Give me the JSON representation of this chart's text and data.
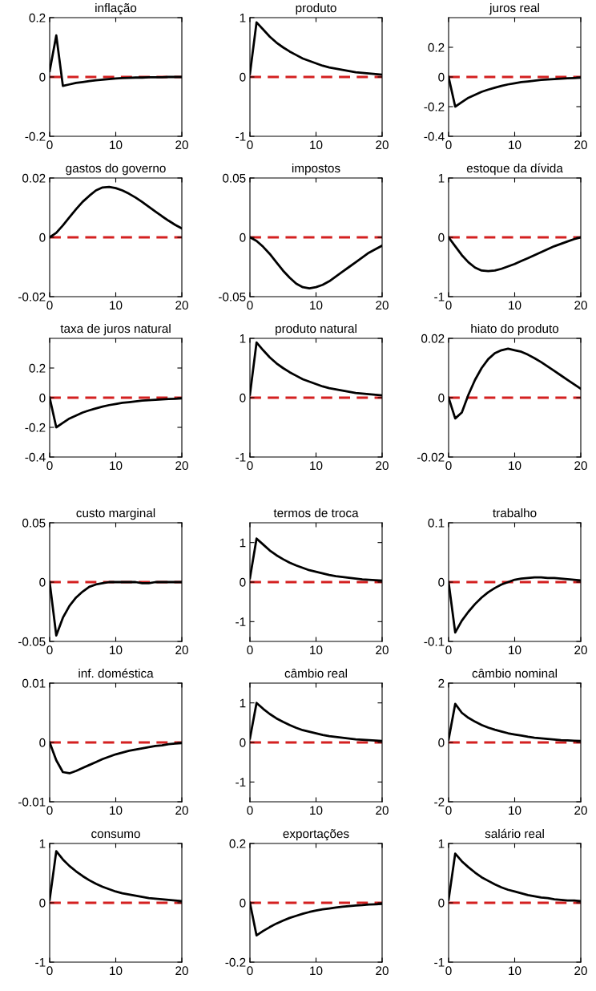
{
  "chart_data": [
    {
      "type": "line",
      "title": "inflação",
      "x": [
        0,
        1,
        2,
        3,
        4,
        5,
        6,
        7,
        8,
        9,
        10,
        11,
        12,
        13,
        14,
        15,
        16,
        17,
        18,
        19,
        20
      ],
      "xlim": [
        0,
        20
      ],
      "xticks": [
        0,
        10,
        20
      ],
      "ylim": [
        -0.2,
        0.2
      ],
      "yticks": [
        -0.2,
        0,
        0.2
      ],
      "ref_lines": [
        {
          "axis": "y",
          "value": 0,
          "color": "#d42020",
          "line_style": "dashed"
        }
      ],
      "series": [
        {
          "color": "#000000",
          "values": [
            0.02,
            0.14,
            -0.03,
            -0.025,
            -0.02,
            -0.017,
            -0.014,
            -0.011,
            -0.009,
            -0.007,
            -0.005,
            -0.004,
            -0.003,
            -0.002,
            -0.002,
            -0.001,
            -0.001,
            -0.001,
            0,
            0,
            0
          ]
        }
      ]
    },
    {
      "type": "line",
      "title": "produto",
      "x": [
        0,
        1,
        2,
        3,
        4,
        5,
        6,
        7,
        8,
        9,
        10,
        11,
        12,
        13,
        14,
        15,
        16,
        17,
        18,
        19,
        20
      ],
      "xlim": [
        0,
        20
      ],
      "xticks": [
        0,
        10,
        20
      ],
      "ylim": [
        -1,
        1
      ],
      "yticks": [
        -1,
        0,
        1
      ],
      "ref_lines": [
        {
          "axis": "y",
          "value": 0,
          "color": "#d42020",
          "line_style": "dashed"
        }
      ],
      "series": [
        {
          "color": "#000000",
          "values": [
            0.05,
            0.92,
            0.8,
            0.68,
            0.58,
            0.5,
            0.43,
            0.37,
            0.31,
            0.27,
            0.23,
            0.19,
            0.16,
            0.14,
            0.12,
            0.1,
            0.08,
            0.07,
            0.06,
            0.05,
            0.04
          ]
        }
      ]
    },
    {
      "type": "line",
      "title": "juros real",
      "x": [
        0,
        1,
        2,
        3,
        4,
        5,
        6,
        7,
        8,
        9,
        10,
        11,
        12,
        13,
        14,
        15,
        16,
        17,
        18,
        19,
        20
      ],
      "xlim": [
        0,
        20
      ],
      "xticks": [
        0,
        10,
        20
      ],
      "ylim": [
        -0.4,
        0.4
      ],
      "yticks": [
        -0.4,
        -0.2,
        0,
        0.2
      ],
      "ref_lines": [
        {
          "axis": "y",
          "value": 0,
          "color": "#d42020",
          "line_style": "dashed"
        }
      ],
      "series": [
        {
          "color": "#000000",
          "values": [
            0,
            -0.2,
            -0.17,
            -0.14,
            -0.12,
            -0.1,
            -0.085,
            -0.072,
            -0.06,
            -0.05,
            -0.042,
            -0.035,
            -0.03,
            -0.025,
            -0.02,
            -0.017,
            -0.014,
            -0.011,
            -0.009,
            -0.007,
            -0.005
          ]
        }
      ]
    },
    {
      "type": "line",
      "title": "gastos do governo",
      "x": [
        0,
        1,
        2,
        3,
        4,
        5,
        6,
        7,
        8,
        9,
        10,
        11,
        12,
        13,
        14,
        15,
        16,
        17,
        18,
        19,
        20
      ],
      "xlim": [
        0,
        20
      ],
      "xticks": [
        0,
        10,
        20
      ],
      "ylim": [
        -0.02,
        0.02
      ],
      "yticks": [
        -0.02,
        0,
        0.02
      ],
      "ref_lines": [
        {
          "axis": "y",
          "value": 0,
          "color": "#d42020",
          "line_style": "dashed"
        }
      ],
      "series": [
        {
          "color": "#000000",
          "values": [
            0,
            0.0015,
            0.004,
            0.0068,
            0.0095,
            0.012,
            0.014,
            0.0158,
            0.0168,
            0.017,
            0.0166,
            0.0158,
            0.0147,
            0.0134,
            0.0119,
            0.0103,
            0.0087,
            0.0071,
            0.0056,
            0.0042,
            0.003
          ]
        }
      ]
    },
    {
      "type": "line",
      "title": "impostos",
      "x": [
        0,
        1,
        2,
        3,
        4,
        5,
        6,
        7,
        8,
        9,
        10,
        11,
        12,
        13,
        14,
        15,
        16,
        17,
        18,
        19,
        20
      ],
      "xlim": [
        0,
        20
      ],
      "xticks": [
        0,
        10,
        20
      ],
      "ylim": [
        -0.05,
        0.05
      ],
      "yticks": [
        -0.05,
        0,
        0.05
      ],
      "ref_lines": [
        {
          "axis": "y",
          "value": 0,
          "color": "#d42020",
          "line_style": "dashed"
        }
      ],
      "series": [
        {
          "color": "#000000",
          "values": [
            0,
            -0.003,
            -0.008,
            -0.014,
            -0.021,
            -0.028,
            -0.034,
            -0.039,
            -0.042,
            -0.043,
            -0.042,
            -0.04,
            -0.037,
            -0.033,
            -0.029,
            -0.025,
            -0.021,
            -0.017,
            -0.013,
            -0.01,
            -0.007
          ]
        }
      ]
    },
    {
      "type": "line",
      "title": "estoque da dívida",
      "x": [
        0,
        1,
        2,
        3,
        4,
        5,
        6,
        7,
        8,
        9,
        10,
        11,
        12,
        13,
        14,
        15,
        16,
        17,
        18,
        19,
        20
      ],
      "xlim": [
        0,
        20
      ],
      "xticks": [
        0,
        10,
        20
      ],
      "ylim": [
        -1,
        1
      ],
      "yticks": [
        -1,
        0,
        1
      ],
      "ref_lines": [
        {
          "axis": "y",
          "value": 0,
          "color": "#d42020",
          "line_style": "dashed"
        }
      ],
      "series": [
        {
          "color": "#000000",
          "values": [
            0,
            -0.15,
            -0.3,
            -0.42,
            -0.51,
            -0.56,
            -0.57,
            -0.56,
            -0.53,
            -0.49,
            -0.45,
            -0.4,
            -0.35,
            -0.3,
            -0.25,
            -0.2,
            -0.15,
            -0.11,
            -0.07,
            -0.03,
            0
          ]
        }
      ]
    },
    {
      "type": "line",
      "title": "taxa de juros natural",
      "x": [
        0,
        1,
        2,
        3,
        4,
        5,
        6,
        7,
        8,
        9,
        10,
        11,
        12,
        13,
        14,
        15,
        16,
        17,
        18,
        19,
        20
      ],
      "xlim": [
        0,
        20
      ],
      "xticks": [
        0,
        10,
        20
      ],
      "ylim": [
        -0.4,
        0.4
      ],
      "yticks": [
        -0.4,
        -0.2,
        0,
        0.2
      ],
      "ref_lines": [
        {
          "axis": "y",
          "value": 0,
          "color": "#d42020",
          "line_style": "dashed"
        }
      ],
      "series": [
        {
          "color": "#000000",
          "values": [
            0,
            -0.2,
            -0.17,
            -0.14,
            -0.12,
            -0.1,
            -0.085,
            -0.072,
            -0.06,
            -0.05,
            -0.042,
            -0.035,
            -0.03,
            -0.025,
            -0.02,
            -0.017,
            -0.014,
            -0.011,
            -0.009,
            -0.007,
            -0.005
          ]
        }
      ]
    },
    {
      "type": "line",
      "title": "produto natural",
      "x": [
        0,
        1,
        2,
        3,
        4,
        5,
        6,
        7,
        8,
        9,
        10,
        11,
        12,
        13,
        14,
        15,
        16,
        17,
        18,
        19,
        20
      ],
      "xlim": [
        0,
        20
      ],
      "xticks": [
        0,
        10,
        20
      ],
      "ylim": [
        -1,
        1
      ],
      "yticks": [
        -1,
        0,
        1
      ],
      "ref_lines": [
        {
          "axis": "y",
          "value": 0,
          "color": "#d42020",
          "line_style": "dashed"
        }
      ],
      "series": [
        {
          "color": "#000000",
          "values": [
            0.05,
            0.93,
            0.8,
            0.68,
            0.58,
            0.5,
            0.43,
            0.37,
            0.31,
            0.27,
            0.23,
            0.19,
            0.16,
            0.14,
            0.12,
            0.1,
            0.08,
            0.07,
            0.06,
            0.05,
            0.04
          ]
        }
      ]
    },
    {
      "type": "line",
      "title": "hiato do produto",
      "x": [
        0,
        1,
        2,
        3,
        4,
        5,
        6,
        7,
        8,
        9,
        10,
        11,
        12,
        13,
        14,
        15,
        16,
        17,
        18,
        19,
        20
      ],
      "xlim": [
        0,
        20
      ],
      "xticks": [
        0,
        10,
        20
      ],
      "ylim": [
        -0.02,
        0.02
      ],
      "yticks": [
        -0.02,
        0,
        0.02
      ],
      "ref_lines": [
        {
          "axis": "y",
          "value": 0,
          "color": "#d42020",
          "line_style": "dashed"
        }
      ],
      "series": [
        {
          "color": "#000000",
          "values": [
            0,
            -0.007,
            -0.005,
            0.001,
            0.006,
            0.01,
            0.013,
            0.015,
            0.016,
            0.0165,
            0.016,
            0.0155,
            0.0145,
            0.0133,
            0.012,
            0.0105,
            0.009,
            0.0075,
            0.006,
            0.0045,
            0.003
          ]
        }
      ]
    },
    {
      "type": "line",
      "title": "custo marginal",
      "x": [
        0,
        1,
        2,
        3,
        4,
        5,
        6,
        7,
        8,
        9,
        10,
        11,
        12,
        13,
        14,
        15,
        16,
        17,
        18,
        19,
        20
      ],
      "xlim": [
        0,
        20
      ],
      "xticks": [
        0,
        10,
        20
      ],
      "ylim": [
        -0.05,
        0.05
      ],
      "yticks": [
        -0.05,
        0,
        0.05
      ],
      "ref_lines": [
        {
          "axis": "y",
          "value": 0,
          "color": "#d42020",
          "line_style": "dashed"
        }
      ],
      "series": [
        {
          "color": "#000000",
          "values": [
            0,
            -0.045,
            -0.03,
            -0.02,
            -0.013,
            -0.008,
            -0.004,
            -0.002,
            -0.001,
            0,
            0,
            0,
            0,
            0,
            -0.001,
            -0.001,
            0,
            0,
            0,
            0,
            0
          ]
        }
      ]
    },
    {
      "type": "line",
      "title": "termos de troca",
      "x": [
        0,
        1,
        2,
        3,
        4,
        5,
        6,
        7,
        8,
        9,
        10,
        11,
        12,
        13,
        14,
        15,
        16,
        17,
        18,
        19,
        20
      ],
      "xlim": [
        0,
        20
      ],
      "xticks": [
        0,
        10,
        20
      ],
      "ylim": [
        -1.5,
        1.5
      ],
      "yticks": [
        -1,
        0,
        1
      ],
      "ref_lines": [
        {
          "axis": "y",
          "value": 0,
          "color": "#d42020",
          "line_style": "dashed"
        }
      ],
      "series": [
        {
          "color": "#000000",
          "values": [
            0.1,
            1.1,
            0.95,
            0.8,
            0.68,
            0.58,
            0.49,
            0.42,
            0.36,
            0.3,
            0.26,
            0.22,
            0.18,
            0.15,
            0.13,
            0.11,
            0.09,
            0.07,
            0.06,
            0.05,
            0.04
          ]
        }
      ]
    },
    {
      "type": "line",
      "title": "trabalho",
      "x": [
        0,
        1,
        2,
        3,
        4,
        5,
        6,
        7,
        8,
        9,
        10,
        11,
        12,
        13,
        14,
        15,
        16,
        17,
        18,
        19,
        20
      ],
      "xlim": [
        0,
        20
      ],
      "xticks": [
        0,
        10,
        20
      ],
      "ylim": [
        -0.1,
        0.1
      ],
      "yticks": [
        -0.1,
        0,
        0.1
      ],
      "ref_lines": [
        {
          "axis": "y",
          "value": 0,
          "color": "#d42020",
          "line_style": "dashed"
        }
      ],
      "series": [
        {
          "color": "#000000",
          "values": [
            0,
            -0.085,
            -0.065,
            -0.05,
            -0.037,
            -0.026,
            -0.017,
            -0.01,
            -0.004,
            0,
            0.004,
            0.006,
            0.007,
            0.008,
            0.008,
            0.007,
            0.007,
            0.006,
            0.005,
            0.004,
            0.003
          ]
        }
      ]
    },
    {
      "type": "line",
      "title": "inf. doméstica",
      "x": [
        0,
        1,
        2,
        3,
        4,
        5,
        6,
        7,
        8,
        9,
        10,
        11,
        12,
        13,
        14,
        15,
        16,
        17,
        18,
        19,
        20
      ],
      "xlim": [
        0,
        20
      ],
      "xticks": [
        0,
        10,
        20
      ],
      "ylim": [
        -0.01,
        0.01
      ],
      "yticks": [
        -0.01,
        0,
        0.01
      ],
      "ref_lines": [
        {
          "axis": "y",
          "value": 0,
          "color": "#d42020",
          "line_style": "dashed"
        }
      ],
      "series": [
        {
          "color": "#000000",
          "values": [
            0,
            -0.003,
            -0.005,
            -0.0052,
            -0.0048,
            -0.0043,
            -0.0038,
            -0.0033,
            -0.0028,
            -0.0024,
            -0.002,
            -0.0017,
            -0.0014,
            -0.0012,
            -0.001,
            -0.0008,
            -0.0006,
            -0.0005,
            -0.0003,
            -0.0002,
            -0.0001
          ]
        }
      ]
    },
    {
      "type": "line",
      "title": "câmbio real",
      "x": [
        0,
        1,
        2,
        3,
        4,
        5,
        6,
        7,
        8,
        9,
        10,
        11,
        12,
        13,
        14,
        15,
        16,
        17,
        18,
        19,
        20
      ],
      "xlim": [
        0,
        20
      ],
      "xticks": [
        0,
        10,
        20
      ],
      "ylim": [
        -1.5,
        1.5
      ],
      "yticks": [
        -1,
        0,
        1
      ],
      "ref_lines": [
        {
          "axis": "y",
          "value": 0,
          "color": "#d42020",
          "line_style": "dashed"
        }
      ],
      "series": [
        {
          "color": "#000000",
          "values": [
            0.1,
            1.0,
            0.85,
            0.72,
            0.61,
            0.52,
            0.44,
            0.37,
            0.31,
            0.27,
            0.23,
            0.19,
            0.16,
            0.14,
            0.12,
            0.1,
            0.08,
            0.07,
            0.06,
            0.05,
            0.04
          ]
        }
      ]
    },
    {
      "type": "line",
      "title": "câmbio nominal",
      "x": [
        0,
        1,
        2,
        3,
        4,
        5,
        6,
        7,
        8,
        9,
        10,
        11,
        12,
        13,
        14,
        15,
        16,
        17,
        18,
        19,
        20
      ],
      "xlim": [
        0,
        20
      ],
      "xticks": [
        0,
        10,
        20
      ],
      "ylim": [
        -2,
        2
      ],
      "yticks": [
        -2,
        0,
        2
      ],
      "ref_lines": [
        {
          "axis": "y",
          "value": 0,
          "color": "#d42020",
          "line_style": "dashed"
        }
      ],
      "series": [
        {
          "color": "#000000",
          "values": [
            0.1,
            1.3,
            1.0,
            0.83,
            0.7,
            0.59,
            0.5,
            0.43,
            0.37,
            0.31,
            0.27,
            0.23,
            0.19,
            0.16,
            0.14,
            0.12,
            0.1,
            0.08,
            0.07,
            0.06,
            0.05
          ]
        }
      ]
    },
    {
      "type": "line",
      "title": "consumo",
      "x": [
        0,
        1,
        2,
        3,
        4,
        5,
        6,
        7,
        8,
        9,
        10,
        11,
        12,
        13,
        14,
        15,
        16,
        17,
        18,
        19,
        20
      ],
      "xlim": [
        0,
        20
      ],
      "xticks": [
        0,
        10,
        20
      ],
      "ylim": [
        -1,
        1
      ],
      "yticks": [
        -1,
        0,
        1
      ],
      "ref_lines": [
        {
          "axis": "y",
          "value": 0,
          "color": "#d42020",
          "line_style": "dashed"
        }
      ],
      "series": [
        {
          "color": "#000000",
          "values": [
            0.05,
            0.87,
            0.73,
            0.62,
            0.53,
            0.45,
            0.38,
            0.32,
            0.27,
            0.23,
            0.19,
            0.16,
            0.14,
            0.12,
            0.1,
            0.08,
            0.07,
            0.06,
            0.05,
            0.04,
            0.03
          ]
        }
      ]
    },
    {
      "type": "line",
      "title": "exportações",
      "x": [
        0,
        1,
        2,
        3,
        4,
        5,
        6,
        7,
        8,
        9,
        10,
        11,
        12,
        13,
        14,
        15,
        16,
        17,
        18,
        19,
        20
      ],
      "xlim": [
        0,
        20
      ],
      "xticks": [
        0,
        10,
        20
      ],
      "ylim": [
        -0.2,
        0.2
      ],
      "yticks": [
        -0.2,
        0,
        0.2
      ],
      "ref_lines": [
        {
          "axis": "y",
          "value": 0,
          "color": "#d42020",
          "line_style": "dashed"
        }
      ],
      "series": [
        {
          "color": "#000000",
          "values": [
            0,
            -0.11,
            -0.095,
            -0.082,
            -0.07,
            -0.06,
            -0.051,
            -0.044,
            -0.037,
            -0.031,
            -0.026,
            -0.022,
            -0.019,
            -0.016,
            -0.013,
            -0.011,
            -0.009,
            -0.008,
            -0.006,
            -0.005,
            -0.004
          ]
        }
      ]
    },
    {
      "type": "line",
      "title": "salário real",
      "x": [
        0,
        1,
        2,
        3,
        4,
        5,
        6,
        7,
        8,
        9,
        10,
        11,
        12,
        13,
        14,
        15,
        16,
        17,
        18,
        19,
        20
      ],
      "xlim": [
        0,
        20
      ],
      "xticks": [
        0,
        10,
        20
      ],
      "ylim": [
        -1,
        1
      ],
      "yticks": [
        -1,
        0,
        1
      ],
      "ref_lines": [
        {
          "axis": "y",
          "value": 0,
          "color": "#d42020",
          "line_style": "dashed"
        }
      ],
      "series": [
        {
          "color": "#000000",
          "values": [
            0.05,
            0.83,
            0.7,
            0.6,
            0.51,
            0.43,
            0.37,
            0.31,
            0.26,
            0.22,
            0.19,
            0.16,
            0.13,
            0.11,
            0.09,
            0.08,
            0.06,
            0.05,
            0.04,
            0.04,
            0.03
          ]
        }
      ]
    }
  ]
}
